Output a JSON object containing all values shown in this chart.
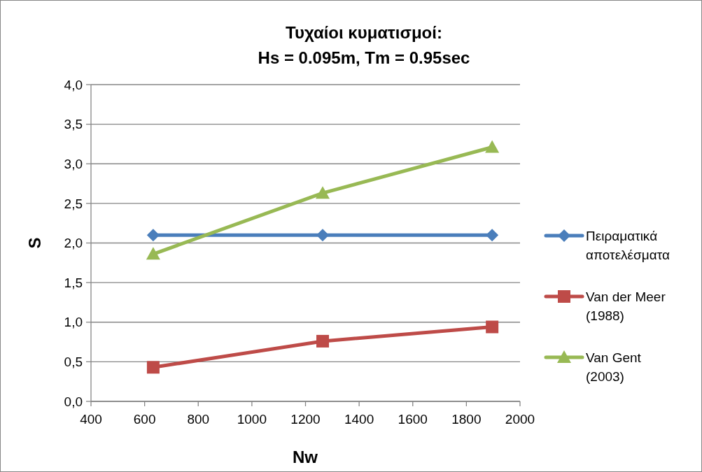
{
  "chart_data": {
    "type": "line",
    "title": "Τυχαίοι κυματισμοί:\nHs = 0.095m, Tm = 0.95sec",
    "xlabel": "Nw",
    "ylabel": "S",
    "x": [
      632,
      1264,
      1896
    ],
    "series": [
      {
        "name": "Πειραματικά αποτελέσματα",
        "color": "#4a7ebb",
        "values": [
          2.1,
          2.1,
          2.1
        ],
        "marker": "diamond"
      },
      {
        "name": "Van der Meer (1988)",
        "color": "#be4b48",
        "values": [
          0.43,
          0.76,
          0.94
        ],
        "marker": "square"
      },
      {
        "name": "Van Gent (2003)",
        "color": "#98b954",
        "values": [
          1.86,
          2.63,
          3.21
        ],
        "marker": "triangle"
      }
    ],
    "xlim": [
      400,
      2000
    ],
    "xticks": [
      400,
      600,
      800,
      1000,
      1200,
      1400,
      1600,
      1800,
      2000
    ],
    "ylim": [
      0,
      4
    ],
    "yticks": [
      {
        "value": 0,
        "label": "0,0"
      },
      {
        "value": 0.5,
        "label": "0,5"
      },
      {
        "value": 1,
        "label": "1,0"
      },
      {
        "value": 1.5,
        "label": "1,5"
      },
      {
        "value": 2,
        "label": "2,0"
      },
      {
        "value": 2.5,
        "label": "2,5"
      },
      {
        "value": 3,
        "label": "3,0"
      },
      {
        "value": 3.5,
        "label": "3,5"
      },
      {
        "value": 4,
        "label": "4,0"
      }
    ],
    "grid": "y",
    "legend": "right"
  }
}
